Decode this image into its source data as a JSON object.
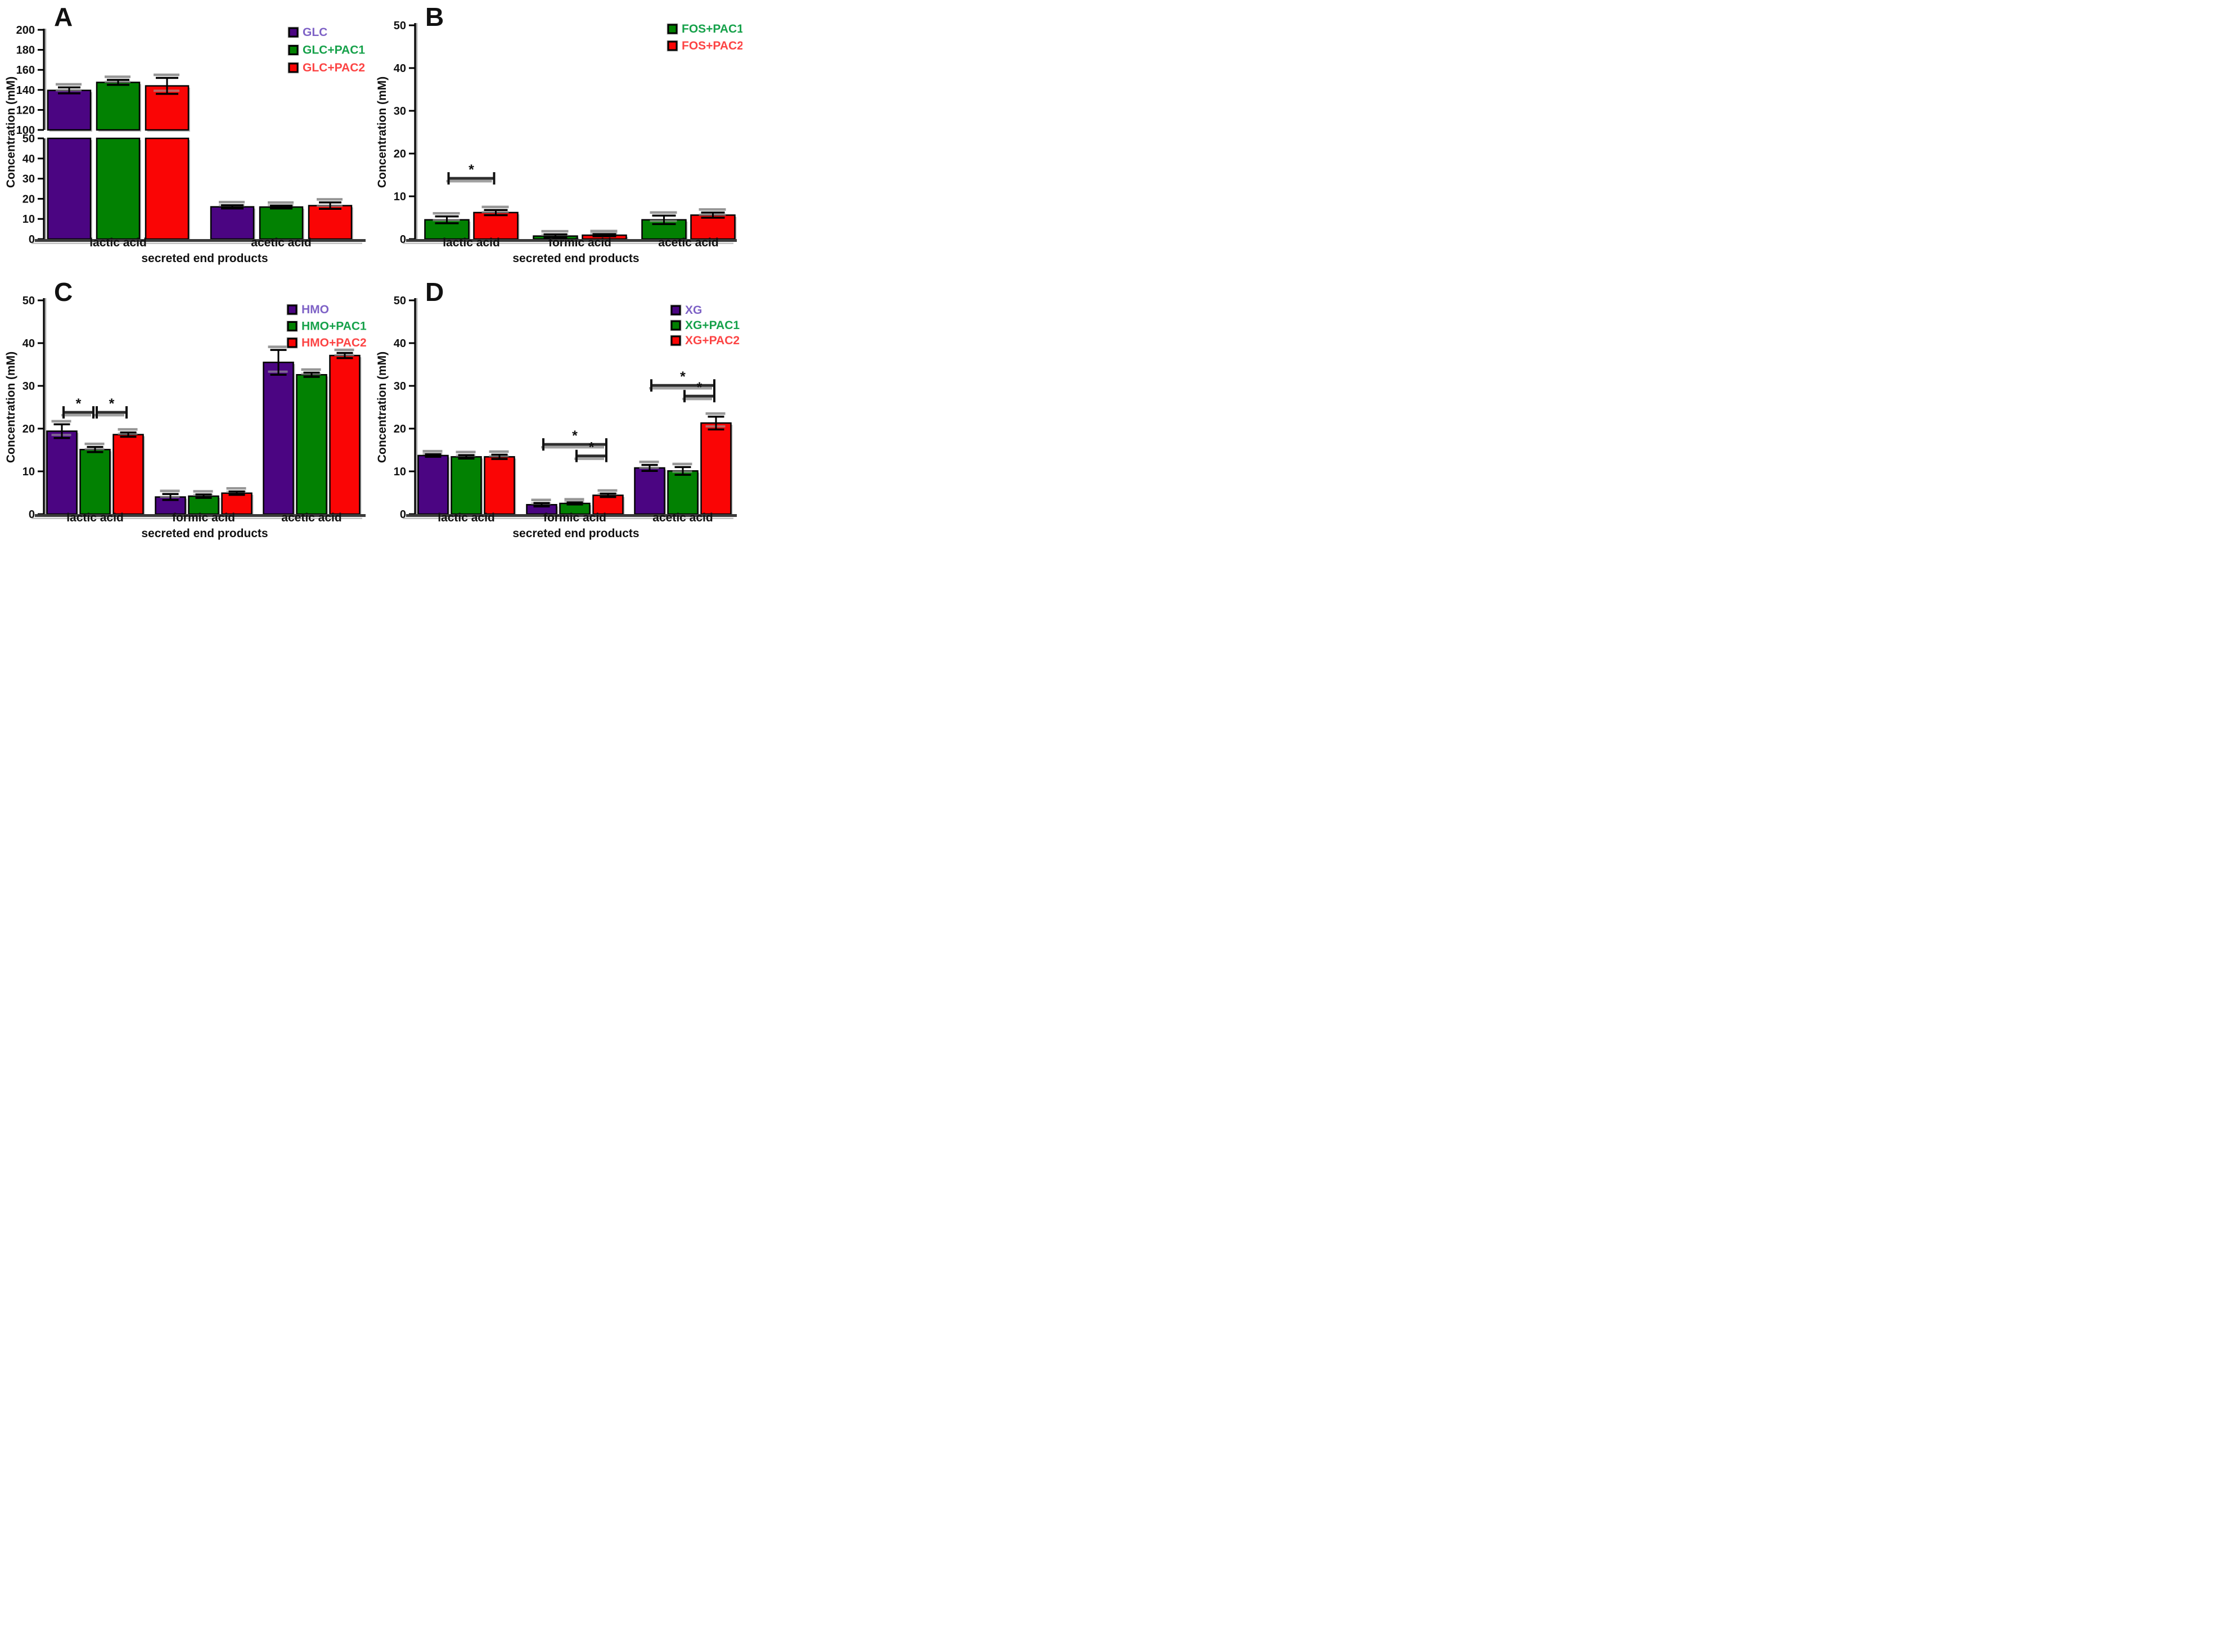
{
  "figure": {
    "background": "#ffffff",
    "ylabel": "Concentration (mM)",
    "xlabel": "secreted end products",
    "star": "*"
  },
  "colors": {
    "bar_purple": "#4B0582",
    "bar_green": "#028102",
    "bar_red": "#FA0505",
    "axis_dark": "#3b3b3b",
    "bracket_dark": "#2e2e2e",
    "shadow_grey": "#bdbdbd",
    "text_black": "#111111"
  },
  "chart_data": [
    {
      "panel": "A",
      "type": "bar",
      "title": "A",
      "ylabel": "Concentration (mM)",
      "xlabel": "secreted end products",
      "categories": [
        "lactic acid",
        "acetic acid"
      ],
      "axis": {
        "type": "broken",
        "lower_range": [
          0,
          50
        ],
        "upper_range": [
          100,
          200
        ],
        "lower_ticks": [
          0,
          10,
          20,
          30,
          40,
          50
        ],
        "upper_ticks": [
          100,
          120,
          140,
          160,
          180,
          200
        ]
      },
      "legend_position": "top-right",
      "series": [
        {
          "name": "GLC",
          "bar_color": "#4B0582",
          "label_color": "#7E62C6",
          "values": [
            139.5,
            16.0
          ],
          "errors": [
            3.0,
            0.8
          ]
        },
        {
          "name": "GLC+PAC1",
          "bar_color": "#028102",
          "label_color": "#16A14A",
          "values": [
            147.5,
            15.9
          ],
          "errors": [
            2.5,
            0.7
          ]
        },
        {
          "name": "GLC+PAC2",
          "bar_color": "#FA0505",
          "label_color": "#FC4444",
          "values": [
            144.0,
            16.6
          ],
          "errors": [
            8.0,
            1.6
          ]
        }
      ],
      "significance": []
    },
    {
      "panel": "B",
      "type": "bar",
      "title": "B",
      "ylabel": "Concentration (mM)",
      "xlabel": "secreted end products",
      "categories": [
        "lactic acid",
        "formic acid",
        "acetic acid"
      ],
      "axis": {
        "type": "linear",
        "range": [
          0,
          50
        ],
        "ticks": [
          0,
          10,
          20,
          30,
          40,
          50
        ]
      },
      "legend_position": "top-right",
      "series": [
        {
          "name": "FOS+PAC1",
          "bar_color": "#028102",
          "label_color": "#16A14A",
          "values": [
            4.5,
            0.7,
            4.5
          ],
          "errors": [
            0.8,
            0.4,
            1.0
          ]
        },
        {
          "name": "FOS+PAC2",
          "bar_color": "#FA0505",
          "label_color": "#FC4444",
          "values": [
            6.2,
            0.9,
            5.6
          ],
          "errors": [
            0.6,
            0.25,
            0.6
          ]
        }
      ],
      "significance": [
        {
          "category": 0,
          "from": 0,
          "to": 1,
          "y": 14.2,
          "label": "*"
        }
      ]
    },
    {
      "panel": "C",
      "type": "bar",
      "title": "C",
      "ylabel": "Concentration (mM)",
      "xlabel": "secreted end products",
      "categories": [
        "lactic acid",
        "formic acid",
        "acetic acid"
      ],
      "axis": {
        "type": "linear",
        "range": [
          0,
          50
        ],
        "ticks": [
          0,
          10,
          20,
          30,
          40,
          50
        ]
      },
      "legend_position": "top-right",
      "series": [
        {
          "name": "HMO",
          "bar_color": "#4B0582",
          "label_color": "#7E62C6",
          "values": [
            19.4,
            4.0,
            35.5
          ],
          "errors": [
            1.6,
            0.7,
            2.9
          ]
        },
        {
          "name": "HMO+PAC1",
          "bar_color": "#028102",
          "label_color": "#16A14A",
          "values": [
            15.1,
            4.2,
            32.6
          ],
          "errors": [
            0.6,
            0.4,
            0.5
          ]
        },
        {
          "name": "HMO+PAC2",
          "bar_color": "#FA0505",
          "label_color": "#FC4444",
          "values": [
            18.6,
            4.9,
            37.1
          ],
          "errors": [
            0.5,
            0.4,
            0.6
          ]
        }
      ],
      "significance": [
        {
          "category": 0,
          "from": 0,
          "to": 1,
          "y": 23.8,
          "label": "*"
        },
        {
          "category": 0,
          "from": 1,
          "to": 2,
          "y": 23.8,
          "label": "*"
        }
      ]
    },
    {
      "panel": "D",
      "type": "bar",
      "title": "D",
      "ylabel": "Concentration (mM)",
      "xlabel": "secreted end products",
      "categories": [
        "lactic acid",
        "formic acid",
        "acetic acid"
      ],
      "axis": {
        "type": "linear",
        "range": [
          0,
          50
        ],
        "ticks": [
          0,
          10,
          20,
          30,
          40,
          50
        ]
      },
      "legend_position": "top-right",
      "series": [
        {
          "name": "XG",
          "bar_color": "#4B0582",
          "label_color": "#7E62C6",
          "values": [
            13.7,
            2.2,
            10.8
          ],
          "errors": [
            0.3,
            0.4,
            0.7
          ]
        },
        {
          "name": "XG+PAC1",
          "bar_color": "#028102",
          "label_color": "#16A14A",
          "values": [
            13.4,
            2.5,
            10.1
          ],
          "errors": [
            0.4,
            0.25,
            0.9
          ]
        },
        {
          "name": "XG+PAC2",
          "bar_color": "#FA0505",
          "label_color": "#FC4444",
          "values": [
            13.4,
            4.4,
            21.3
          ],
          "errors": [
            0.5,
            0.4,
            1.5
          ]
        }
      ],
      "significance": [
        {
          "category": 1,
          "from": 0,
          "to": 2,
          "y": 16.3,
          "label": "*"
        },
        {
          "category": 1,
          "from": 1,
          "to": 2,
          "y": 13.6,
          "label": "*"
        },
        {
          "category": 2,
          "from": 0,
          "to": 2,
          "y": 30.1,
          "label": "*"
        },
        {
          "category": 2,
          "from": 1,
          "to": 2,
          "y": 27.6,
          "label": "*"
        }
      ]
    }
  ]
}
